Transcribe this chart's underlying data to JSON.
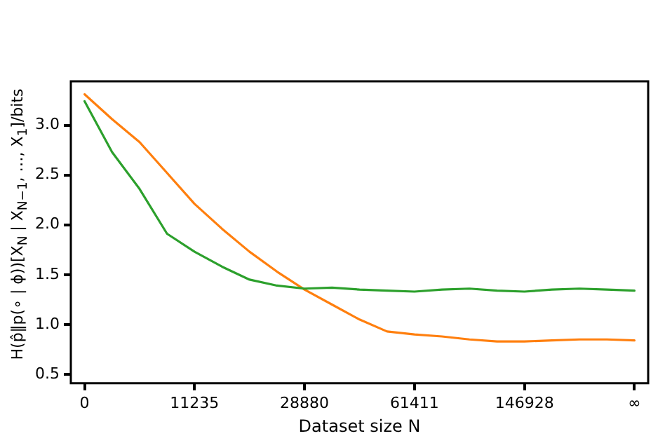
{
  "chart_data": {
    "type": "line",
    "xlabel": "Dataset size N",
    "ylabel": "H(p̂‖p(∘ | ϕ))[X$_{N}$ | X$_{N−1}$, …, X$_{1}$]/bits",
    "categories": [
      "0",
      null,
      null,
      null,
      "11235",
      null,
      null,
      null,
      "28880",
      null,
      null,
      null,
      "61411",
      null,
      null,
      null,
      "146928",
      null,
      null,
      null,
      "∞"
    ],
    "series": [
      {
        "color": "#2ca02c",
        "values": [
          3.24,
          2.73,
          2.36,
          1.91,
          1.73,
          1.58,
          1.45,
          1.39,
          1.36,
          1.37,
          1.35,
          1.34,
          1.33,
          1.35,
          1.36,
          1.34,
          1.33,
          1.35,
          1.36,
          1.35,
          1.34
        ]
      },
      {
        "color": "#ff7f0e",
        "values": [
          3.31,
          3.06,
          2.83,
          2.52,
          2.21,
          1.96,
          1.73,
          1.53,
          1.35,
          1.2,
          1.05,
          0.93,
          0.9,
          0.88,
          0.85,
          0.83,
          0.83,
          0.84,
          0.85,
          0.85,
          0.84
        ]
      }
    ],
    "ylim": [
      0.41,
      3.44
    ],
    "yticks": [
      0.5,
      {
        "value": 1,
        "label": "1.0"
      },
      1.5,
      {
        "value": 2,
        "label": "2.0"
      },
      2.5,
      {
        "value": 3,
        "label": "3.0"
      }
    ],
    "grid": false,
    "legend": false,
    "marker": "none",
    "line_style": "solid"
  }
}
